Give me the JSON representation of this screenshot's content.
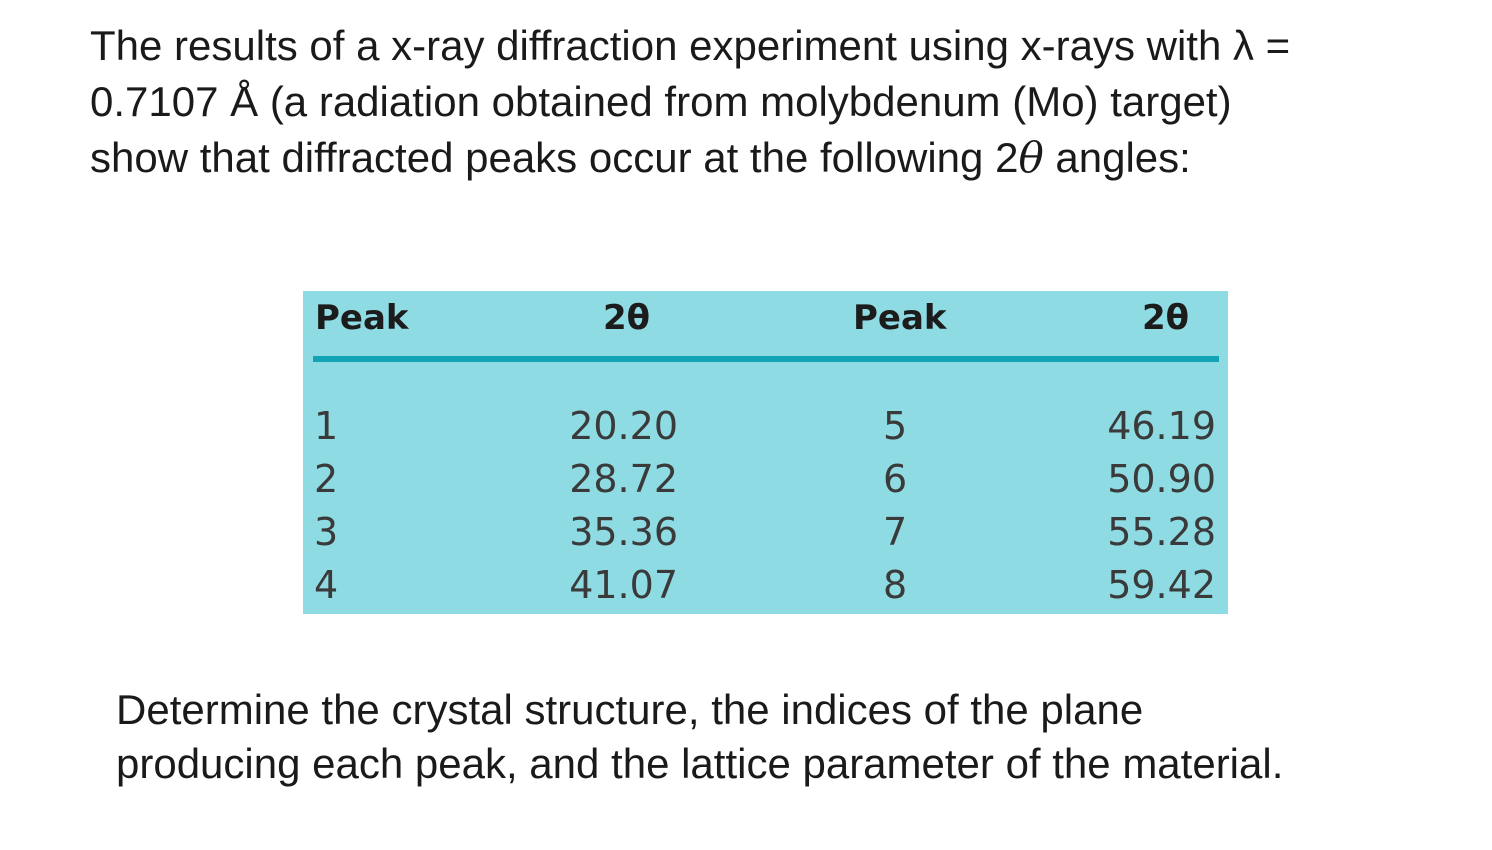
{
  "intro": {
    "line1": "The results of a x-ray diffraction experiment using x-rays with λ =",
    "line2": "0.7107 Å (a radiation obtained from molybdenum (Mo) target)",
    "line3_pre": "show that diffracted peaks occur at the following 2",
    "line3_theta": "θ",
    "line3_post": " angles:"
  },
  "table": {
    "headers": [
      "Peak",
      "2θ",
      "Peak",
      "2θ"
    ],
    "left_peaks": [
      "1",
      "2",
      "3",
      "4"
    ],
    "left_angles": [
      "20.20",
      "28.72",
      "35.36",
      "41.07"
    ],
    "right_peaks": [
      "5",
      "6",
      "7",
      "8"
    ],
    "right_angles": [
      "46.19",
      "50.90",
      "55.28",
      "59.42"
    ],
    "colors": {
      "background": "#8fdbe3",
      "rule": "#12a3b5"
    }
  },
  "question": {
    "line1": "Determine the crystal structure, the indices of the plane",
    "line2": "producing each peak, and the lattice parameter of the material."
  }
}
